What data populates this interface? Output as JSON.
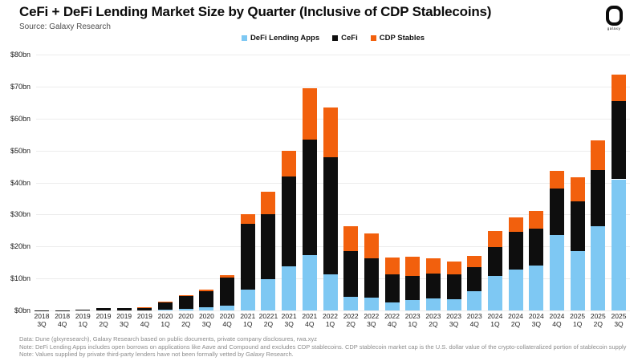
{
  "header": {
    "source": "Source: Galaxy Research",
    "logo_word": "galaxy"
  },
  "legend": [
    {
      "label": "DeFi Lending Apps",
      "color": "#7ec8f3"
    },
    {
      "label": "CeFi",
      "color": "#0e0e0e"
    },
    {
      "label": "CDP Stables",
      "color": "#f2600d"
    }
  ],
  "chart_data": {
    "type": "bar",
    "stacked": true,
    "title": "CeFi + DeFi Lending Market Size by Quarter (Inclusive of CDP Stablecoins)",
    "ylabel": "",
    "xlabel": "",
    "ylim": [
      0,
      80
    ],
    "grid": true,
    "legend_position": "top-center",
    "ytick_labels": [
      "$0bn",
      "$10bn",
      "$20bn",
      "$30bn",
      "$40bn",
      "$50bn",
      "$60bn",
      "$70bn",
      "$80bn"
    ],
    "categories": [
      {
        "year": "2018",
        "q": "3Q"
      },
      {
        "year": "2018",
        "q": "4Q"
      },
      {
        "year": "2019",
        "q": "1Q"
      },
      {
        "year": "2019",
        "q": "2Q"
      },
      {
        "year": "2019",
        "q": "3Q"
      },
      {
        "year": "2019",
        "q": "4Q"
      },
      {
        "year": "2020",
        "q": "1Q"
      },
      {
        "year": "2020",
        "q": "2Q"
      },
      {
        "year": "2020",
        "q": "3Q"
      },
      {
        "year": "2020",
        "q": "4Q"
      },
      {
        "year": "2021",
        "q": "1Q"
      },
      {
        "year": "20221",
        "q": "2Q"
      },
      {
        "year": "2021",
        "q": "3Q"
      },
      {
        "year": "2021",
        "q": "4Q"
      },
      {
        "year": "2022",
        "q": "1Q"
      },
      {
        "year": "2022",
        "q": "2Q"
      },
      {
        "year": "2022",
        "q": "3Q"
      },
      {
        "year": "2022",
        "q": "4Q"
      },
      {
        "year": "2023",
        "q": "1Q"
      },
      {
        "year": "2023",
        "q": "2Q"
      },
      {
        "year": "2023",
        "q": "3Q"
      },
      {
        "year": "2023",
        "q": "4Q"
      },
      {
        "year": "2024",
        "q": "1Q"
      },
      {
        "year": "2024",
        "q": "2Q"
      },
      {
        "year": "2024",
        "q": "3Q"
      },
      {
        "year": "2024",
        "q": "4Q"
      },
      {
        "year": "2025",
        "q": "1Q"
      },
      {
        "year": "2025",
        "q": "2Q"
      },
      {
        "year": "2025",
        "q": "3Q"
      }
    ],
    "series": [
      {
        "name": "DeFi Lending Apps",
        "color": "#7ec8f3",
        "values": [
          0,
          0,
          0,
          0,
          0,
          0,
          0.2,
          0.5,
          1.0,
          1.6,
          6.5,
          9.8,
          13.9,
          17.4,
          11.3,
          4.3,
          4.0,
          2.5,
          3.3,
          3.8,
          3.5,
          6.0,
          10.8,
          12.7,
          14.0,
          23.5,
          18.6,
          26.4,
          41.0
        ]
      },
      {
        "name": "CeFi",
        "color": "#0e0e0e",
        "values": [
          0.1,
          0.1,
          0.3,
          0.7,
          0.7,
          0.8,
          2.5,
          4.0,
          5.0,
          8.7,
          20.5,
          20.2,
          28.1,
          35.9,
          36.7,
          14.3,
          12.4,
          8.8,
          7.5,
          7.8,
          7.8,
          7.6,
          9.1,
          11.8,
          11.7,
          14.5,
          15.6,
          17.6,
          24.4
        ]
      },
      {
        "name": "CDP Stables",
        "color": "#f2600d",
        "values": [
          0,
          0,
          0,
          0,
          0,
          0.1,
          0.1,
          0.3,
          0.5,
          0.7,
          3.0,
          7.0,
          7.8,
          16.1,
          15.5,
          7.8,
          7.8,
          5.3,
          6.1,
          4.8,
          4.0,
          3.5,
          5.0,
          4.7,
          5.5,
          5.6,
          7.4,
          9.2,
          8.3
        ]
      }
    ]
  },
  "footer": {
    "line1": "Data: Dune (glxyresearch), Galaxy Research based on public documents, private company disclosures, rwa.xyz",
    "line2": "Note: DeFi Lending Apps includes open borrows on applications like Aave and Compound and excludes CDP stablecoins. CDP stablecoin market cap is the U.S. dollar value of the crypto-collateralized portion of stablecoin supply",
    "line3": "Note: Values supplied by private third-party lenders have not been formally vetted  by Galaxy Research."
  }
}
